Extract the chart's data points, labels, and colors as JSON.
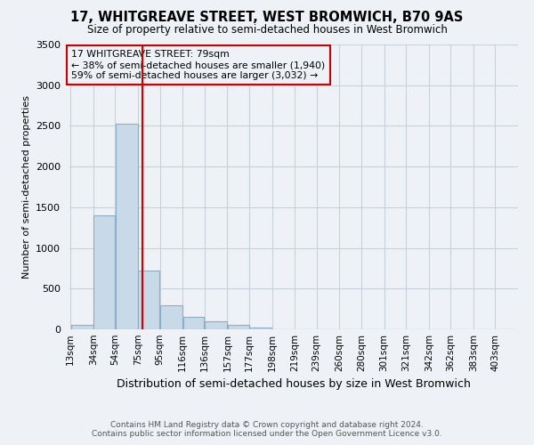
{
  "title": "17, WHITGREAVE STREET, WEST BROMWICH, B70 9AS",
  "subtitle": "Size of property relative to semi-detached houses in West Bromwich",
  "xlabel": "Distribution of semi-detached houses by size in West Bromwich",
  "ylabel": "Number of semi-detached properties",
  "footer_line1": "Contains HM Land Registry data © Crown copyright and database right 2024.",
  "footer_line2": "Contains public sector information licensed under the Open Government Licence v3.0.",
  "annotation_line1": "17 WHITGREAVE STREET: 79sqm",
  "annotation_line2": "← 38% of semi-detached houses are smaller (1,940)",
  "annotation_line3": "59% of semi-detached houses are larger (3,032) →",
  "property_size": 79,
  "bar_edges": [
    13,
    34,
    54,
    75,
    95,
    116,
    136,
    157,
    177,
    198,
    219,
    239,
    260,
    280,
    301,
    321,
    342,
    362,
    383,
    403,
    424
  ],
  "bar_heights": [
    60,
    1400,
    2530,
    720,
    300,
    155,
    100,
    50,
    20,
    5,
    0,
    0,
    0,
    0,
    0,
    0,
    0,
    0,
    0,
    0
  ],
  "bar_color": "#c8d9e8",
  "bar_edge_color": "#8aafc8",
  "red_line_color": "#cc0000",
  "annotation_box_color": "#cc0000",
  "grid_color": "#c8d0d8",
  "background_color": "#eef2f6",
  "ylim": [
    0,
    3500
  ],
  "yticks": [
    0,
    500,
    1000,
    1500,
    2000,
    2500,
    3000,
    3500
  ]
}
